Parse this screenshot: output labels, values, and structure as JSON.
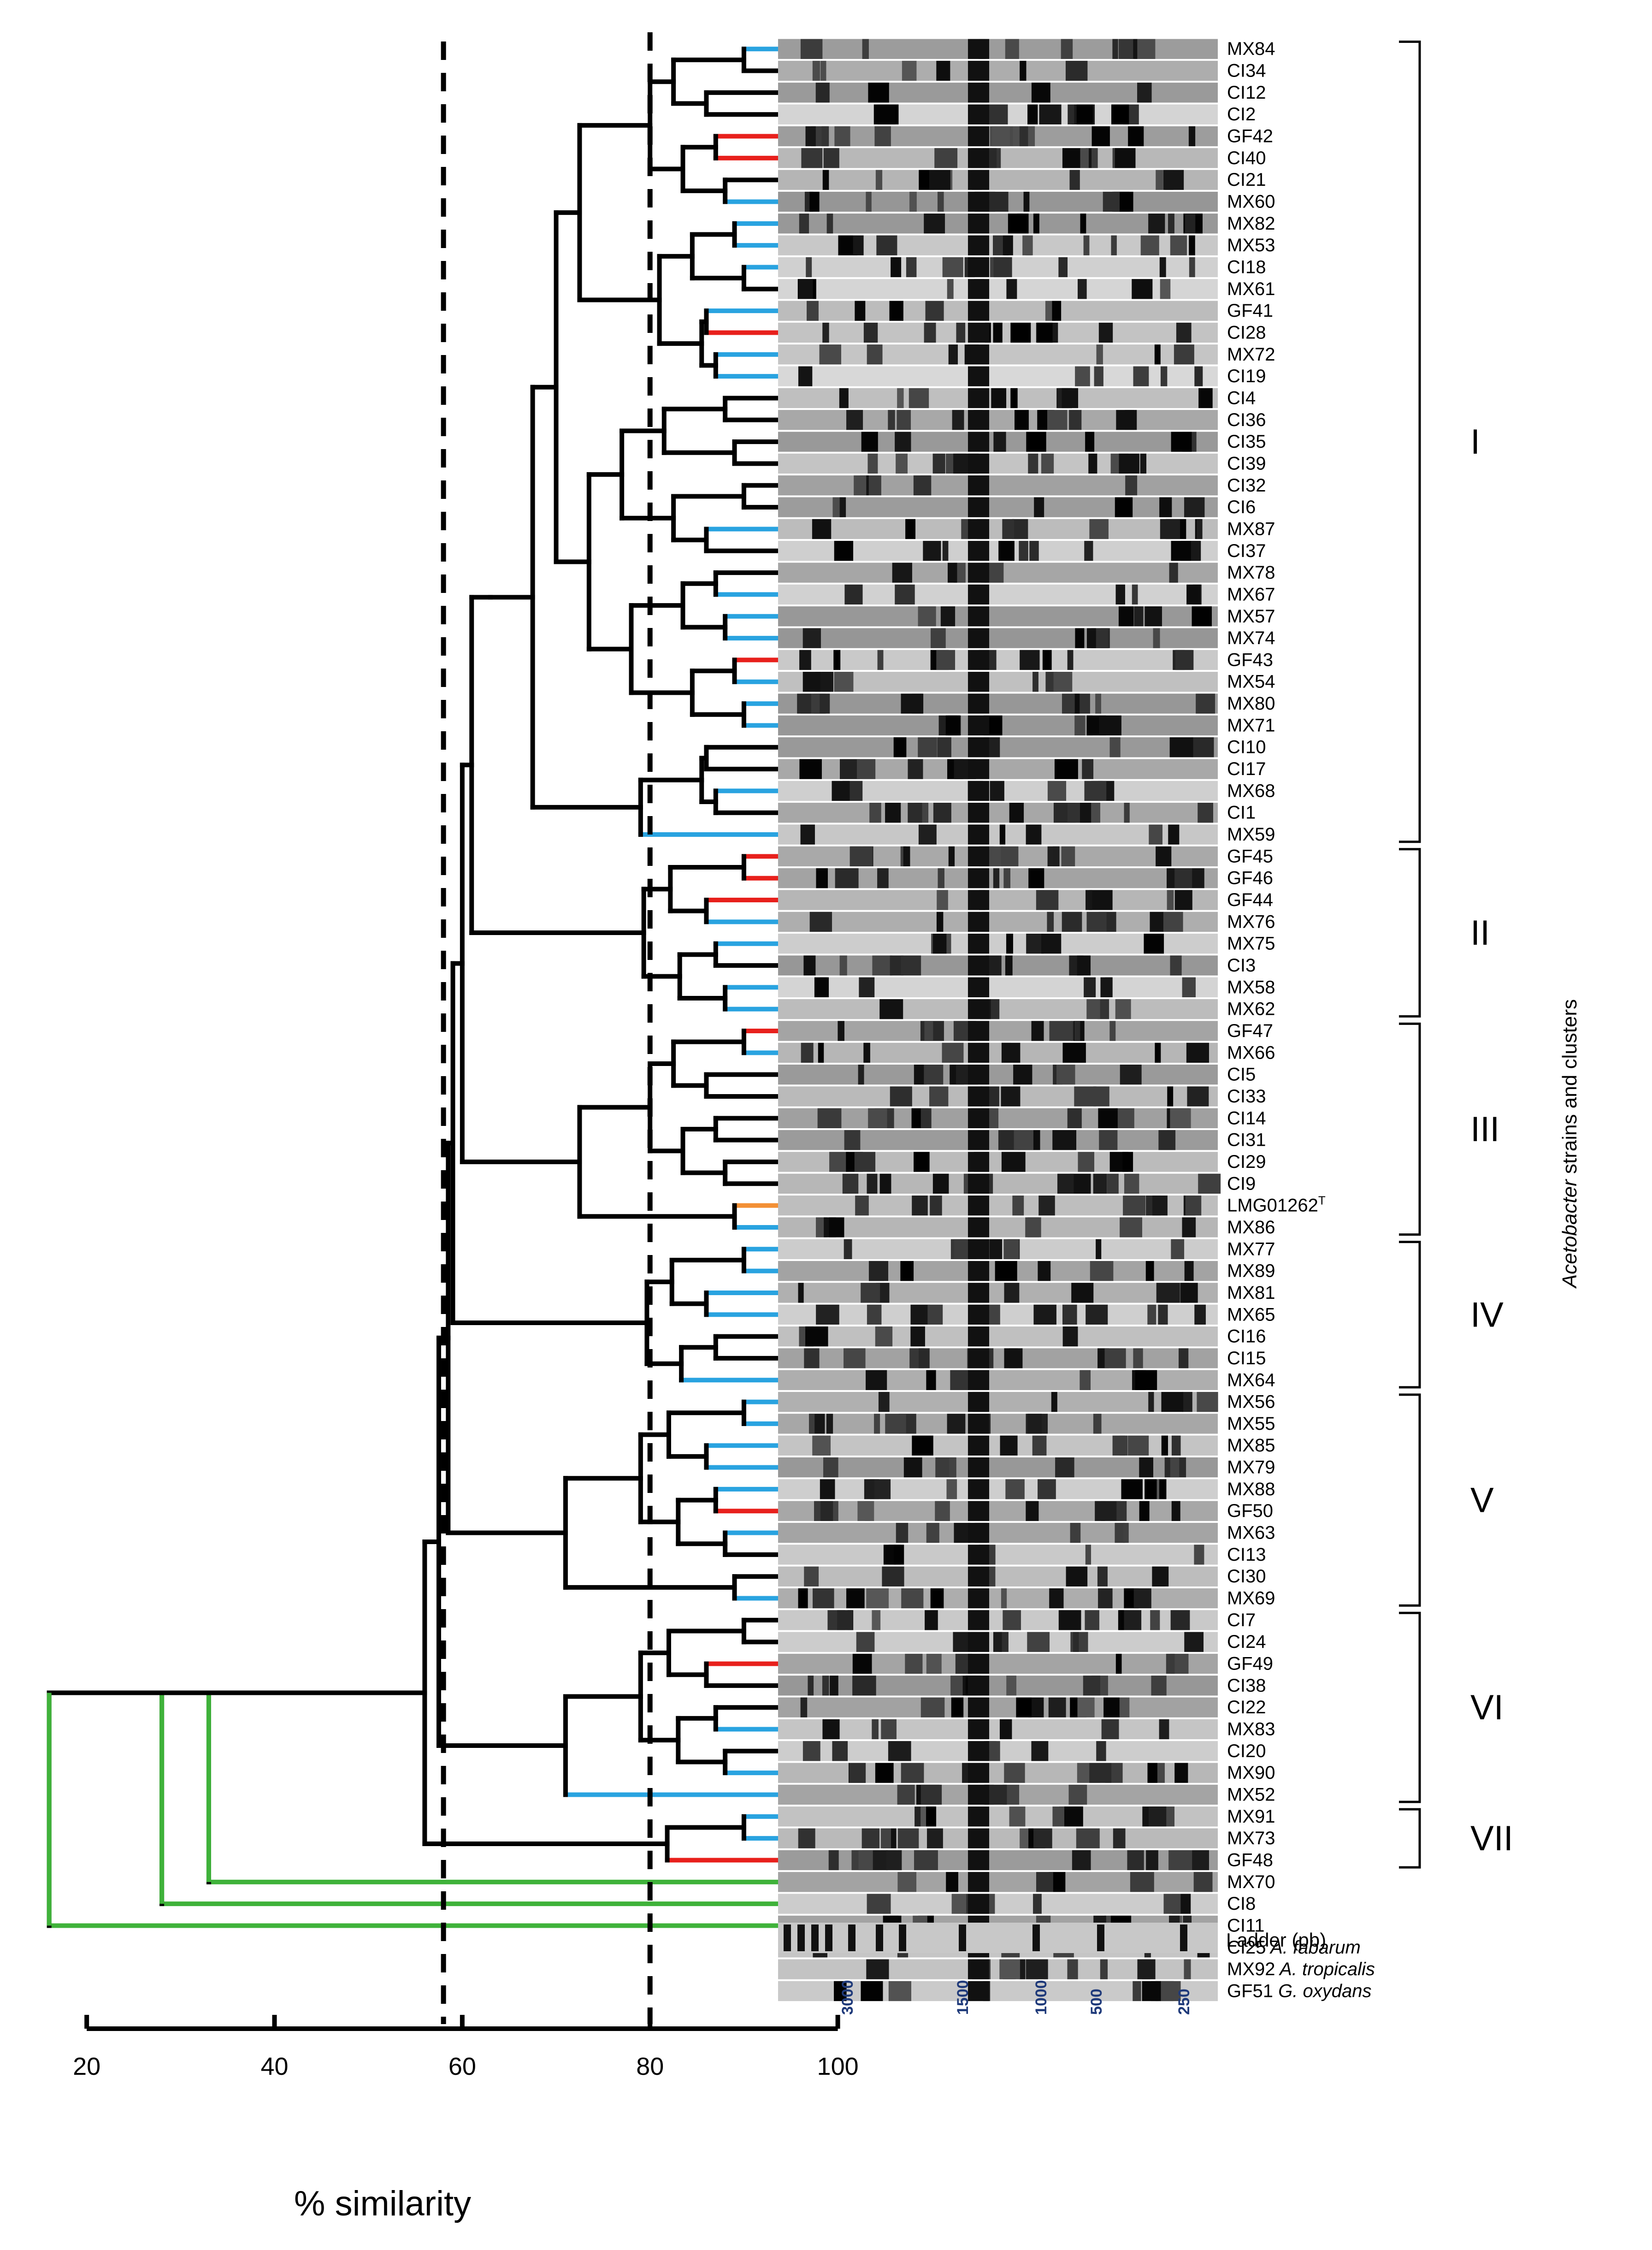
{
  "strains": [
    {
      "name": "MX84",
      "branch": "blue"
    },
    {
      "name": "CI34",
      "branch": "black"
    },
    {
      "name": "CI12",
      "branch": "black"
    },
    {
      "name": "CI2",
      "branch": "black"
    },
    {
      "name": "GF42",
      "branch": "red"
    },
    {
      "name": "CI40",
      "branch": "red"
    },
    {
      "name": "CI21",
      "branch": "black"
    },
    {
      "name": "MX60",
      "branch": "blue"
    },
    {
      "name": "MX82",
      "branch": "blue"
    },
    {
      "name": "MX53",
      "branch": "blue"
    },
    {
      "name": "CI18",
      "branch": "blue"
    },
    {
      "name": "MX61",
      "branch": "black"
    },
    {
      "name": "GF41",
      "branch": "blue"
    },
    {
      "name": "CI28",
      "branch": "red"
    },
    {
      "name": "MX72",
      "branch": "blue"
    },
    {
      "name": "CI19",
      "branch": "blue"
    },
    {
      "name": "CI4",
      "branch": "black"
    },
    {
      "name": "CI36",
      "branch": "black"
    },
    {
      "name": "CI35",
      "branch": "black"
    },
    {
      "name": "CI39",
      "branch": "black"
    },
    {
      "name": "CI32",
      "branch": "black"
    },
    {
      "name": "CI6",
      "branch": "black"
    },
    {
      "name": "MX87",
      "branch": "blue"
    },
    {
      "name": "CI37",
      "branch": "black"
    },
    {
      "name": "MX78",
      "branch": "black"
    },
    {
      "name": "MX67",
      "branch": "blue"
    },
    {
      "name": "MX57",
      "branch": "blue"
    },
    {
      "name": "MX74",
      "branch": "blue"
    },
    {
      "name": "GF43",
      "branch": "red"
    },
    {
      "name": "MX54",
      "branch": "blue"
    },
    {
      "name": "MX80",
      "branch": "blue"
    },
    {
      "name": "MX71",
      "branch": "blue"
    },
    {
      "name": "CI10",
      "branch": "black"
    },
    {
      "name": "CI17",
      "branch": "black"
    },
    {
      "name": "MX68",
      "branch": "blue"
    },
    {
      "name": "CI1",
      "branch": "black"
    },
    {
      "name": "MX59",
      "branch": "blue"
    },
    {
      "name": "GF45",
      "branch": "red"
    },
    {
      "name": "GF46",
      "branch": "red"
    },
    {
      "name": "GF44",
      "branch": "red"
    },
    {
      "name": "MX76",
      "branch": "blue"
    },
    {
      "name": "MX75",
      "branch": "blue"
    },
    {
      "name": "CI3",
      "branch": "black"
    },
    {
      "name": "MX58",
      "branch": "blue"
    },
    {
      "name": "MX62",
      "branch": "blue"
    },
    {
      "name": "GF47",
      "branch": "red"
    },
    {
      "name": "MX66",
      "branch": "blue"
    },
    {
      "name": "CI5",
      "branch": "black"
    },
    {
      "name": "CI33",
      "branch": "black"
    },
    {
      "name": "CI14",
      "branch": "black"
    },
    {
      "name": "CI31",
      "branch": "black"
    },
    {
      "name": "CI29",
      "branch": "black"
    },
    {
      "name": "CI9",
      "branch": "black"
    },
    {
      "name": "LMG01262",
      "sup": "T",
      "branch": "orange"
    },
    {
      "name": "MX86",
      "branch": "blue"
    },
    {
      "name": "MX77",
      "branch": "blue"
    },
    {
      "name": "MX89",
      "branch": "blue"
    },
    {
      "name": "MX81",
      "branch": "blue"
    },
    {
      "name": "MX65",
      "branch": "blue"
    },
    {
      "name": "CI16",
      "branch": "black"
    },
    {
      "name": "CI15",
      "branch": "black"
    },
    {
      "name": "MX64",
      "branch": "blue"
    },
    {
      "name": "MX56",
      "branch": "blue"
    },
    {
      "name": "MX55",
      "branch": "blue"
    },
    {
      "name": "MX85",
      "branch": "blue"
    },
    {
      "name": "MX79",
      "branch": "blue"
    },
    {
      "name": "MX88",
      "branch": "blue"
    },
    {
      "name": "GF50",
      "branch": "red"
    },
    {
      "name": "MX63",
      "branch": "blue"
    },
    {
      "name": "CI13",
      "branch": "black"
    },
    {
      "name": "CI30",
      "branch": "black"
    },
    {
      "name": "MX69",
      "branch": "blue"
    },
    {
      "name": "CI7",
      "branch": "black"
    },
    {
      "name": "CI24",
      "branch": "black"
    },
    {
      "name": "GF49",
      "branch": "red"
    },
    {
      "name": "CI38",
      "branch": "black"
    },
    {
      "name": "CI22",
      "branch": "black"
    },
    {
      "name": "MX83",
      "branch": "blue"
    },
    {
      "name": "CI20",
      "branch": "black"
    },
    {
      "name": "MX90",
      "branch": "blue"
    },
    {
      "name": "MX52",
      "branch": "blue"
    },
    {
      "name": "MX91",
      "branch": "blue"
    },
    {
      "name": "MX73",
      "branch": "blue"
    },
    {
      "name": "GF48",
      "branch": "red"
    },
    {
      "name": "MX70",
      "branch": "blue"
    },
    {
      "name": "CI8",
      "branch": "black"
    },
    {
      "name": "CI11",
      "branch": "black"
    },
    {
      "name": "CI25",
      "species": "A. fabarum",
      "branch": "green"
    },
    {
      "name": "MX92",
      "species": "A. tropicalis",
      "branch": "green"
    },
    {
      "name": "GF51",
      "species": "G. oxydans",
      "branch": "green"
    }
  ],
  "clusters": [
    {
      "label": "I",
      "first": 0,
      "last": 36
    },
    {
      "label": "II",
      "first": 37,
      "last": 44
    },
    {
      "label": "III",
      "first": 45,
      "last": 54
    },
    {
      "label": "IV",
      "first": 55,
      "last": 61
    },
    {
      "label": "V",
      "first": 62,
      "last": 71
    },
    {
      "label": "VI",
      "first": 72,
      "last": 80
    },
    {
      "label": "VII",
      "first": 81,
      "last": 83
    }
  ],
  "side_title": {
    "genus": "Acetobacter",
    "rest": " strains and clusters"
  },
  "axis": {
    "ticks": [
      20,
      40,
      60,
      80,
      100
    ],
    "title": "% similarity"
  },
  "cutoffs": [
    58,
    80
  ],
  "ladder": {
    "title": "Ladder (pb)",
    "ticks": [
      "3000",
      "1500",
      "1000",
      "500",
      "250"
    ]
  },
  "colors": {
    "black": "#000000",
    "blue": "#29a3e0",
    "red": "#e8201c",
    "green": "#3fb23a",
    "orange": "#f39036"
  }
}
